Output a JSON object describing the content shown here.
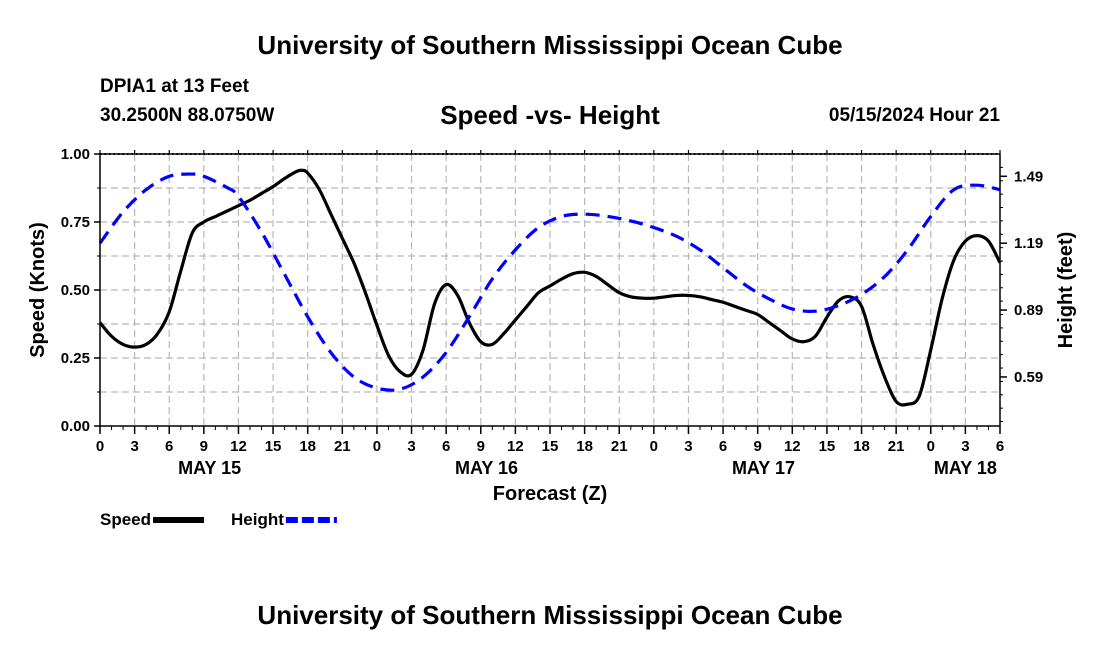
{
  "header": {
    "main_title": "University of Southern Mississippi Ocean Cube",
    "station": "DPIA1 at 13 Feet",
    "coords": "30.2500N  88.0750W",
    "datetime": "05/15/2024 Hour 21"
  },
  "footer": {
    "title": "University of Southern Mississippi Ocean Cube"
  },
  "chart_data": {
    "type": "line",
    "title": "Speed -vs- Height",
    "xlabel": "Forecast (Z)",
    "ylabel": "Speed (Knots)",
    "y2label": "Height (feet)",
    "x_range": [
      0,
      78
    ],
    "ylim": [
      0,
      1.0
    ],
    "y2lim": [
      0.37,
      1.59
    ],
    "y_ticks": [
      0.0,
      0.25,
      0.5,
      0.75,
      1.0
    ],
    "y_tick_labels": [
      "0.00",
      "0.25",
      "0.50",
      "0.75",
      "1.00"
    ],
    "y2_ticks": [
      0.59,
      0.89,
      1.19,
      1.49
    ],
    "y2_tick_labels": [
      "0.59",
      "0.89",
      "1.19",
      "1.49"
    ],
    "x_ticks": [
      0,
      3,
      6,
      9,
      12,
      15,
      18,
      21,
      24,
      27,
      30,
      33,
      36,
      39,
      42,
      45,
      48,
      51,
      54,
      57,
      60,
      63,
      66,
      69,
      72,
      75,
      78
    ],
    "x_tick_labels": [
      "0",
      "3",
      "6",
      "9",
      "12",
      "15",
      "18",
      "21",
      "0",
      "3",
      "6",
      "9",
      "12",
      "15",
      "18",
      "21",
      "0",
      "3",
      "6",
      "9",
      "12",
      "15",
      "18",
      "21",
      "0",
      "3",
      "6"
    ],
    "day_labels": [
      {
        "x": 9.5,
        "label": "MAY 15"
      },
      {
        "x": 33.5,
        "label": "MAY 16"
      },
      {
        "x": 57.5,
        "label": "MAY 17"
      },
      {
        "x": 75,
        "label": "MAY 18"
      }
    ],
    "grid": true,
    "series": [
      {
        "name": "Speed",
        "axis": "left",
        "color": "#000000",
        "dash": "solid",
        "x": [
          0,
          1,
          2,
          3,
          4,
          5,
          6,
          7,
          8,
          9,
          10,
          11,
          12,
          13,
          14,
          15,
          16,
          17,
          17.5,
          18,
          19,
          20,
          21,
          22,
          23,
          24,
          25,
          26,
          27,
          28,
          29,
          30,
          31,
          32,
          33,
          34,
          35,
          36,
          37,
          38,
          39,
          40,
          41,
          42,
          43,
          44,
          45,
          46,
          47,
          48,
          49,
          50,
          51,
          52,
          53,
          54,
          55,
          56,
          57,
          58,
          59,
          60,
          61,
          62,
          63,
          64,
          65,
          66,
          67,
          68,
          69,
          70,
          71,
          72,
          73,
          74,
          75,
          76,
          77,
          78
        ],
        "values": [
          0.38,
          0.33,
          0.3,
          0.29,
          0.3,
          0.34,
          0.42,
          0.57,
          0.71,
          0.75,
          0.77,
          0.79,
          0.81,
          0.83,
          0.855,
          0.88,
          0.91,
          0.935,
          0.94,
          0.93,
          0.87,
          0.78,
          0.69,
          0.6,
          0.49,
          0.37,
          0.26,
          0.2,
          0.19,
          0.28,
          0.45,
          0.52,
          0.48,
          0.38,
          0.31,
          0.3,
          0.34,
          0.39,
          0.44,
          0.49,
          0.515,
          0.54,
          0.56,
          0.565,
          0.55,
          0.52,
          0.49,
          0.475,
          0.47,
          0.47,
          0.475,
          0.48,
          0.48,
          0.475,
          0.465,
          0.455,
          0.44,
          0.425,
          0.41,
          0.38,
          0.35,
          0.32,
          0.31,
          0.33,
          0.4,
          0.46,
          0.475,
          0.44,
          0.3,
          0.18,
          0.09,
          0.08,
          0.11,
          0.28,
          0.47,
          0.61,
          0.68,
          0.7,
          0.68,
          0.6
        ]
      },
      {
        "name": "Height",
        "axis": "right",
        "color": "#0000ff",
        "dash": "dashed",
        "x": [
          0,
          2,
          4,
          6,
          8,
          9,
          11,
          12,
          14,
          16,
          18,
          20,
          22,
          24,
          26,
          28,
          30,
          32,
          34,
          36,
          38,
          40,
          42,
          44,
          46,
          48,
          50,
          52,
          54,
          56,
          58,
          60,
          62,
          64,
          66,
          68,
          70,
          72,
          74,
          76,
          78
        ],
        "values": [
          1.19,
          1.33,
          1.43,
          1.49,
          1.5,
          1.49,
          1.44,
          1.4,
          1.24,
          1.05,
          0.86,
          0.7,
          0.59,
          0.54,
          0.535,
          0.59,
          0.7,
          0.86,
          1.03,
          1.16,
          1.26,
          1.31,
          1.32,
          1.31,
          1.29,
          1.26,
          1.22,
          1.16,
          1.08,
          1.0,
          0.94,
          0.895,
          0.885,
          0.91,
          0.96,
          1.04,
          1.16,
          1.31,
          1.43,
          1.45,
          1.43
        ]
      }
    ],
    "legend": [
      {
        "label": "Speed",
        "color": "#000000",
        "dash": "solid"
      },
      {
        "label": "Height",
        "color": "#0000ff",
        "dash": "dashed"
      }
    ],
    "legend_position": "bottom-left"
  }
}
